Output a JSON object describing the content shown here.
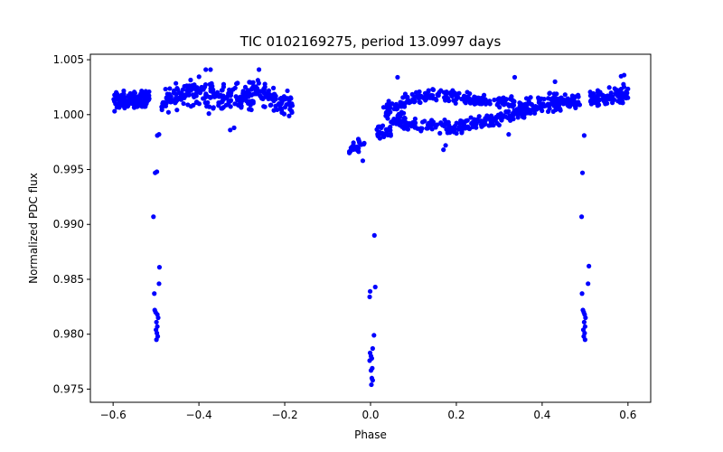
{
  "chart_data": {
    "type": "scatter",
    "title": "TIC 0102169275, period 13.0997 days",
    "xlabel": "Phase",
    "ylabel": "Normalized PDC flux",
    "xlim": [
      -0.653,
      0.653
    ],
    "ylim": [
      0.9738,
      1.0055
    ],
    "grid": false,
    "marker_color": "#0000ff",
    "x_ticks": [
      -0.6,
      -0.4,
      -0.2,
      0.0,
      0.2,
      0.4,
      0.6
    ],
    "x_tick_labels": [
      "−0.6",
      "−0.4",
      "−0.2",
      "0.0",
      "0.2",
      "0.4",
      "0.6"
    ],
    "y_ticks": [
      0.975,
      0.98,
      0.985,
      0.99,
      0.995,
      1.0,
      1.005
    ],
    "y_tick_labels": [
      "0.975",
      "0.980",
      "0.985",
      "0.990",
      "0.995",
      "1.000",
      "1.005"
    ],
    "baseline_segments": [
      {
        "x0": -0.6,
        "x1": -0.565,
        "y0": 1.0012,
        "y1": 1.0013,
        "amp": 0.0008,
        "n": 60
      },
      {
        "x0": -0.565,
        "x1": -0.515,
        "y0": 1.0013,
        "y1": 1.0015,
        "amp": 0.0007,
        "n": 75
      },
      {
        "x0": -0.487,
        "x1": -0.42,
        "y0": 1.0012,
        "y1": 1.0021,
        "amp": 0.001,
        "n": 70
      },
      {
        "x0": -0.42,
        "x1": -0.34,
        "y0": 1.0021,
        "y1": 1.0015,
        "amp": 0.0013,
        "n": 85
      },
      {
        "x0": -0.34,
        "x1": -0.26,
        "y0": 1.0015,
        "y1": 1.002,
        "amp": 0.0012,
        "n": 80
      },
      {
        "x0": -0.26,
        "x1": -0.18,
        "y0": 1.002,
        "y1": 1.0008,
        "amp": 0.001,
        "n": 75
      },
      {
        "x0": -0.05,
        "x1": -0.012,
        "y0": 0.9965,
        "y1": 0.9975,
        "amp": 0.0006,
        "n": 22
      },
      {
        "x0": 0.01,
        "x1": 0.08,
        "y0": 0.998,
        "y1": 1.0002,
        "amp": 0.001,
        "n": 55
      },
      {
        "x0": 0.03,
        "x1": 0.14,
        "y0": 1.0005,
        "y1": 1.0018,
        "amp": 0.0006,
        "n": 60
      },
      {
        "x0": 0.07,
        "x1": 0.2,
        "y0": 0.999,
        "y1": 0.9988,
        "amp": 0.0006,
        "n": 70
      },
      {
        "x0": 0.14,
        "x1": 0.34,
        "y0": 1.0018,
        "y1": 1.001,
        "amp": 0.0006,
        "n": 120
      },
      {
        "x0": 0.2,
        "x1": 0.34,
        "y0": 0.9988,
        "y1": 1.0,
        "amp": 0.0006,
        "n": 95
      },
      {
        "x0": 0.34,
        "x1": 0.488,
        "y0": 1.0005,
        "y1": 1.0013,
        "amp": 0.0008,
        "n": 150
      },
      {
        "x0": 0.512,
        "x1": 0.6,
        "y0": 1.0015,
        "y1": 1.002,
        "amp": 0.0009,
        "n": 90
      }
    ],
    "outliers": [
      {
        "x": 0.336,
        "y": 1.0034
      },
      {
        "x": -0.384,
        "y": 1.0041
      },
      {
        "x": -0.373,
        "y": 1.0041
      },
      {
        "x": -0.26,
        "y": 1.0041
      },
      {
        "x": 0.591,
        "y": 1.0036
      },
      {
        "x": 0.584,
        "y": 1.0035
      },
      {
        "x": 0.322,
        "y": 0.9982
      },
      {
        "x": 0.17,
        "y": 0.9968
      },
      {
        "x": 0.175,
        "y": 0.9972
      },
      {
        "x": -0.018,
        "y": 0.9958
      },
      {
        "x": 0.43,
        "y": 1.003
      },
      {
        "x": 0.063,
        "y": 1.0034
      },
      {
        "x": -0.318,
        "y": 0.9988
      },
      {
        "x": -0.327,
        "y": 0.9986
      }
    ],
    "transit_points": [
      {
        "x": -0.497,
        "y": 0.9981
      },
      {
        "x": -0.493,
        "y": 0.9982
      },
      {
        "x": -0.498,
        "y": 0.9948
      },
      {
        "x": -0.502,
        "y": 0.9947
      },
      {
        "x": -0.506,
        "y": 0.9907
      },
      {
        "x": -0.492,
        "y": 0.9861
      },
      {
        "x": -0.493,
        "y": 0.9846
      },
      {
        "x": -0.504,
        "y": 0.9837
      },
      {
        "x": -0.503,
        "y": 0.9822
      },
      {
        "x": -0.501,
        "y": 0.982
      },
      {
        "x": -0.497,
        "y": 0.9818
      },
      {
        "x": -0.495,
        "y": 0.9815
      },
      {
        "x": -0.499,
        "y": 0.9811
      },
      {
        "x": -0.497,
        "y": 0.9807
      },
      {
        "x": -0.5,
        "y": 0.9804
      },
      {
        "x": -0.498,
        "y": 0.9801
      },
      {
        "x": -0.496,
        "y": 0.9798
      },
      {
        "x": -0.499,
        "y": 0.9795
      },
      {
        "x": 0.009,
        "y": 0.989
      },
      {
        "x": 0.011,
        "y": 0.9843
      },
      {
        "x": -0.001,
        "y": 0.9839
      },
      {
        "x": -0.002,
        "y": 0.9834
      },
      {
        "x": 0.008,
        "y": 0.9799
      },
      {
        "x": 0.005,
        "y": 0.9787
      },
      {
        "x": -0.001,
        "y": 0.9783
      },
      {
        "x": 0.001,
        "y": 0.978
      },
      {
        "x": 0.003,
        "y": 0.9778
      },
      {
        "x": -0.002,
        "y": 0.9776
      },
      {
        "x": 0.004,
        "y": 0.9769
      },
      {
        "x": 0.001,
        "y": 0.9767
      },
      {
        "x": 0.003,
        "y": 0.976
      },
      {
        "x": 0.005,
        "y": 0.9758
      },
      {
        "x": 0.002,
        "y": 0.9754
      },
      {
        "x": 0.498,
        "y": 0.9981
      },
      {
        "x": 0.494,
        "y": 0.9947
      },
      {
        "x": 0.492,
        "y": 0.9907
      },
      {
        "x": 0.509,
        "y": 0.9862
      },
      {
        "x": 0.507,
        "y": 0.9846
      },
      {
        "x": 0.493,
        "y": 0.9837
      },
      {
        "x": 0.495,
        "y": 0.9822
      },
      {
        "x": 0.497,
        "y": 0.982
      },
      {
        "x": 0.499,
        "y": 0.9818
      },
      {
        "x": 0.501,
        "y": 0.9815
      },
      {
        "x": 0.498,
        "y": 0.9811
      },
      {
        "x": 0.5,
        "y": 0.9807
      },
      {
        "x": 0.496,
        "y": 0.9804
      },
      {
        "x": 0.499,
        "y": 0.9801
      },
      {
        "x": 0.497,
        "y": 0.9798
      },
      {
        "x": 0.5,
        "y": 0.9795
      }
    ]
  }
}
